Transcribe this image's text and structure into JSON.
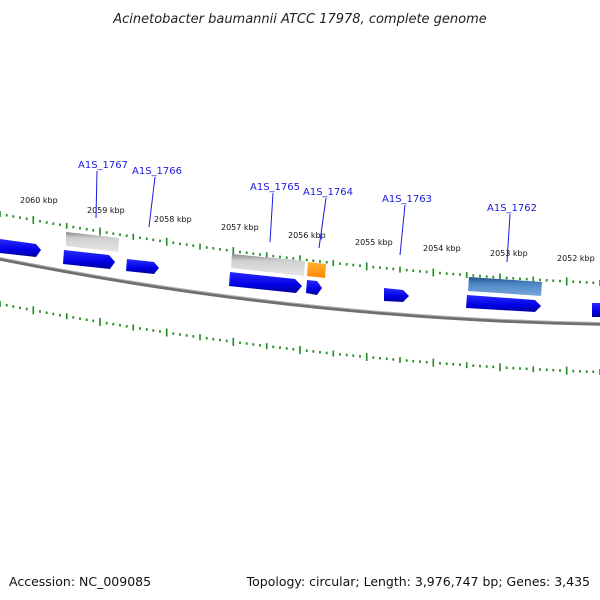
{
  "title": "Acinetobacter baumannii ATCC 17978, complete genome",
  "footer": {
    "accession": "Accession: NC_009085",
    "summary": "Topology: circular; Length: 3,976,747 bp; Genes: 3,435"
  },
  "colors": {
    "backbone": "#6f6f6f",
    "tick": "#1f8a1f",
    "gene_forward": "#0000ee",
    "gene_label": "#1a1adc",
    "pseudo": "#bdbdbd",
    "orange": "#ff9900",
    "steel": "#3f77b6"
  },
  "kbp_labels": [
    "2060 kbp",
    "2059 kbp",
    "2058 kbp",
    "2057 kbp",
    "2056 kbp",
    "2055 kbp",
    "2054 kbp",
    "2053 kbp",
    "2052 kbp"
  ],
  "gene_labels": [
    "A1S_1767",
    "A1S_1766",
    "A1S_1765",
    "A1S_1764",
    "A1S_1763",
    "A1S_1762"
  ]
}
